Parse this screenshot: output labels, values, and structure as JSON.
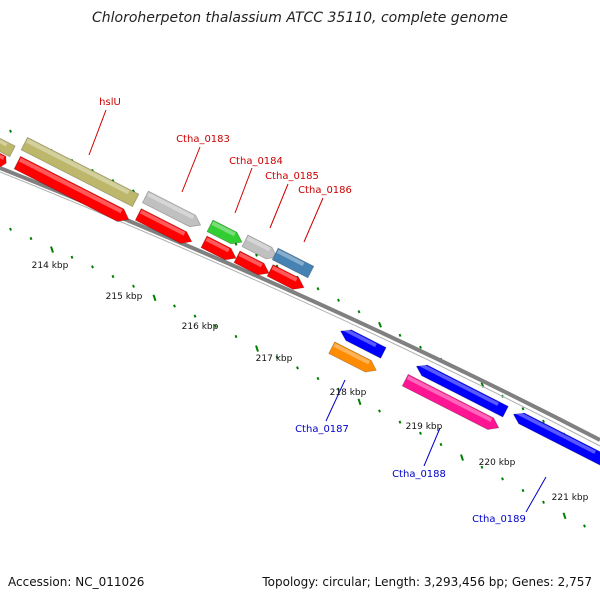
{
  "title": "Chloroherpeton thalassium ATCC 35110, complete genome",
  "footer": {
    "accession": "Accession: NC_011026",
    "summary": "Topology: circular; Length: 3,293,456 bp; Genes: 2,757"
  },
  "ticks": [
    "214 kbp",
    "215 kbp",
    "216 kbp",
    "217 kbp",
    "218 kbp",
    "219 kbp",
    "220 kbp",
    "221 kbp"
  ],
  "genes": [
    {
      "id": "g-left-stub",
      "label": "",
      "color": "#ff0000"
    },
    {
      "id": "g-left-tan",
      "label": "",
      "color": "#bdb76b"
    },
    {
      "id": "g-hslU",
      "label": "hslU",
      "color": "#bdb76b"
    },
    {
      "id": "g-hslU-red",
      "label": "",
      "color": "#ff0000"
    },
    {
      "id": "g-0183",
      "label": "Ctha_0183",
      "color": "#c0c0c0"
    },
    {
      "id": "g-0183-red",
      "label": "",
      "color": "#ff0000"
    },
    {
      "id": "g-0184",
      "label": "Ctha_0184",
      "color": "#32cd32"
    },
    {
      "id": "g-0184-red",
      "label": "",
      "color": "#ff0000"
    },
    {
      "id": "g-0185",
      "label": "Ctha_0185",
      "color": "#c0c0c0"
    },
    {
      "id": "g-0185-red",
      "label": "",
      "color": "#ff0000"
    },
    {
      "id": "g-0186",
      "label": "Ctha_0186",
      "color": "#4682b4"
    },
    {
      "id": "g-0186-red",
      "label": "",
      "color": "#ff0000"
    },
    {
      "id": "g-0187-blue",
      "label": "",
      "color": "#0000ff"
    },
    {
      "id": "g-0187",
      "label": "Ctha_0187",
      "color": "#ff8c00"
    },
    {
      "id": "g-0188-blue",
      "label": "",
      "color": "#0000ff"
    },
    {
      "id": "g-0188",
      "label": "Ctha_0188",
      "color": "#ff1493"
    },
    {
      "id": "g-0189",
      "label": "Ctha_0189",
      "color": "#0000ff"
    }
  ],
  "colors": {
    "backbone": "#808080",
    "tick": "#008000",
    "forward_label": "#cc0000",
    "reverse_label": "#0000cc"
  }
}
